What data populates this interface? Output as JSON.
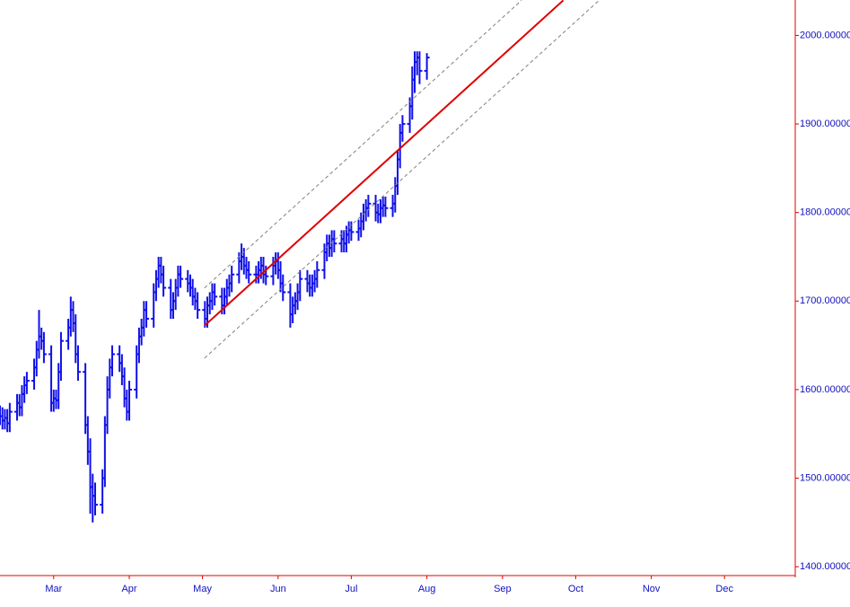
{
  "chart_data": {
    "type": "ohlc",
    "color": "#1010e8",
    "axis_color": "#e00000",
    "label_color": "#1010c0",
    "xlim": [
      0,
      326
    ],
    "ylim": [
      1390,
      2040
    ],
    "xticks": [
      {
        "value": 22,
        "label": "Mar"
      },
      {
        "value": 53,
        "label": "Apr"
      },
      {
        "value": 83,
        "label": "May"
      },
      {
        "value": 114,
        "label": "Jun"
      },
      {
        "value": 144,
        "label": "Jul"
      },
      {
        "value": 175,
        "label": "Aug"
      },
      {
        "value": 206,
        "label": "Sep"
      },
      {
        "value": 236,
        "label": "Oct"
      },
      {
        "value": 267,
        "label": "Nov"
      },
      {
        "value": 297,
        "label": "Dec"
      }
    ],
    "yticks": [
      {
        "value": 1400,
        "label": "1400.000000"
      },
      {
        "value": 1500,
        "label": "1500.000000"
      },
      {
        "value": 1600,
        "label": "1600.000000"
      },
      {
        "value": 1700,
        "label": "1700.000000"
      },
      {
        "value": 1800,
        "label": "1800.000000"
      },
      {
        "value": 1900,
        "label": "1900.000000"
      },
      {
        "value": 2000,
        "label": "2000.000000"
      }
    ],
    "x": [
      0,
      1,
      2,
      3,
      4,
      7,
      8,
      9,
      10,
      11,
      14,
      15,
      16,
      17,
      18,
      21,
      22,
      23,
      24,
      25,
      28,
      29,
      30,
      31,
      32,
      35,
      36,
      37,
      38,
      39,
      42,
      43,
      44,
      45,
      46,
      49,
      50,
      51,
      52,
      53,
      56,
      57,
      58,
      59,
      60,
      63,
      64,
      65,
      66,
      67,
      70,
      71,
      72,
      73,
      74,
      77,
      78,
      79,
      80,
      81,
      84,
      85,
      86,
      87,
      88,
      91,
      92,
      93,
      94,
      95,
      98,
      99,
      100,
      101,
      102,
      105,
      106,
      107,
      108,
      109,
      112,
      113,
      114,
      115,
      116,
      119,
      120,
      121,
      122,
      123,
      126,
      127,
      128,
      129,
      130,
      133,
      134,
      135,
      136,
      137,
      140,
      141,
      142,
      143,
      144,
      147,
      148,
      149,
      150,
      151,
      154,
      155,
      156,
      157,
      158,
      161,
      162,
      163,
      164,
      165,
      168,
      169,
      170,
      171,
      172,
      175
    ],
    "open": [
      1572,
      1570,
      1565,
      1568,
      1562,
      1575,
      1585,
      1580,
      1595,
      1605,
      1610,
      1625,
      1645,
      1660,
      1655,
      1640,
      1585,
      1590,
      1588,
      1620,
      1655,
      1670,
      1690,
      1675,
      1640,
      1620,
      1560,
      1530,
      1490,
      1480,
      1470,
      1500,
      1560,
      1600,
      1625,
      1640,
      1630,
      1615,
      1590,
      1575,
      1600,
      1640,
      1660,
      1670,
      1690,
      1680,
      1710,
      1725,
      1740,
      1730,
      1715,
      1690,
      1700,
      1715,
      1730,
      1725,
      1720,
      1715,
      1705,
      1700,
      1690,
      1680,
      1695,
      1700,
      1710,
      1705,
      1695,
      1705,
      1715,
      1720,
      1730,
      1745,
      1750,
      1740,
      1735,
      1730,
      1730,
      1735,
      1740,
      1730,
      1728,
      1740,
      1745,
      1735,
      1720,
      1710,
      1685,
      1695,
      1700,
      1710,
      1725,
      1720,
      1715,
      1720,
      1725,
      1735,
      1755,
      1765,
      1760,
      1770,
      1765,
      1770,
      1765,
      1775,
      1780,
      1778,
      1782,
      1790,
      1800,
      1805,
      1810,
      1800,
      1798,
      1805,
      1808,
      1805,
      1810,
      1830,
      1860,
      1890,
      1900,
      1920,
      1950,
      1970,
      1975,
      1960
    ],
    "high": [
      1582,
      1580,
      1578,
      1578,
      1585,
      1595,
      1595,
      1605,
      1615,
      1620,
      1635,
      1655,
      1690,
      1670,
      1665,
      1650,
      1600,
      1600,
      1630,
      1665,
      1680,
      1705,
      1700,
      1685,
      1650,
      1630,
      1570,
      1545,
      1505,
      1495,
      1510,
      1570,
      1615,
      1635,
      1650,
      1650,
      1640,
      1625,
      1600,
      1610,
      1650,
      1670,
      1680,
      1700,
      1700,
      1720,
      1735,
      1750,
      1750,
      1740,
      1725,
      1710,
      1725,
      1740,
      1740,
      1735,
      1730,
      1725,
      1715,
      1710,
      1700,
      1705,
      1710,
      1720,
      1720,
      1715,
      1715,
      1725,
      1730,
      1740,
      1755,
      1765,
      1760,
      1750,
      1745,
      1740,
      1745,
      1750,
      1750,
      1740,
      1750,
      1755,
      1755,
      1745,
      1730,
      1720,
      1705,
      1710,
      1720,
      1735,
      1735,
      1730,
      1730,
      1735,
      1745,
      1765,
      1775,
      1775,
      1780,
      1780,
      1780,
      1780,
      1785,
      1790,
      1790,
      1792,
      1800,
      1810,
      1815,
      1820,
      1820,
      1810,
      1815,
      1818,
      1818,
      1820,
      1840,
      1870,
      1900,
      1910,
      1930,
      1965,
      1982,
      1982,
      1982,
      1980
    ],
    "low": [
      1560,
      1555,
      1555,
      1552,
      1552,
      1565,
      1570,
      1570,
      1585,
      1595,
      1600,
      1615,
      1635,
      1645,
      1630,
      1575,
      1575,
      1578,
      1578,
      1610,
      1645,
      1660,
      1665,
      1630,
      1610,
      1550,
      1515,
      1460,
      1450,
      1458,
      1460,
      1490,
      1550,
      1590,
      1615,
      1620,
      1605,
      1580,
      1565,
      1565,
      1590,
      1630,
      1650,
      1660,
      1670,
      1670,
      1700,
      1715,
      1720,
      1705,
      1680,
      1680,
      1690,
      1705,
      1715,
      1710,
      1705,
      1695,
      1690,
      1680,
      1670,
      1670,
      1685,
      1690,
      1695,
      1685,
      1685,
      1695,
      1705,
      1710,
      1720,
      1735,
      1730,
      1725,
      1720,
      1720,
      1720,
      1725,
      1720,
      1718,
      1718,
      1730,
      1725,
      1710,
      1700,
      1670,
      1675,
      1685,
      1690,
      1700,
      1710,
      1705,
      1705,
      1710,
      1715,
      1725,
      1745,
      1750,
      1750,
      1755,
      1755,
      1755,
      1755,
      1765,
      1768,
      1768,
      1772,
      1780,
      1790,
      1795,
      1790,
      1788,
      1788,
      1795,
      1795,
      1795,
      1800,
      1820,
      1850,
      1880,
      1890,
      1905,
      1935,
      1955,
      1945,
      1950
    ],
    "close": [
      1570,
      1565,
      1568,
      1562,
      1575,
      1585,
      1580,
      1595,
      1605,
      1610,
      1625,
      1645,
      1660,
      1655,
      1640,
      1585,
      1590,
      1588,
      1620,
      1655,
      1670,
      1690,
      1675,
      1640,
      1620,
      1560,
      1530,
      1490,
      1480,
      1470,
      1500,
      1560,
      1600,
      1625,
      1640,
      1630,
      1615,
      1590,
      1575,
      1600,
      1640,
      1660,
      1670,
      1690,
      1680,
      1710,
      1725,
      1740,
      1730,
      1715,
      1690,
      1700,
      1715,
      1730,
      1725,
      1720,
      1715,
      1705,
      1700,
      1690,
      1680,
      1695,
      1700,
      1710,
      1705,
      1695,
      1705,
      1715,
      1720,
      1730,
      1745,
      1750,
      1740,
      1735,
      1730,
      1730,
      1735,
      1740,
      1730,
      1728,
      1740,
      1745,
      1735,
      1720,
      1710,
      1685,
      1695,
      1700,
      1710,
      1725,
      1720,
      1715,
      1720,
      1725,
      1735,
      1755,
      1765,
      1760,
      1770,
      1765,
      1770,
      1765,
      1775,
      1780,
      1778,
      1782,
      1790,
      1800,
      1805,
      1810,
      1800,
      1798,
      1805,
      1808,
      1805,
      1810,
      1830,
      1860,
      1890,
      1900,
      1920,
      1950,
      1970,
      1975,
      1960,
      1975
    ],
    "trend_lines": [
      {
        "x": [
          83.8,
          230.9
        ],
        "values": [
          1672.1,
          2039.6
        ],
        "color": "#e00000",
        "dashed": false
      },
      {
        "x": [
          83.8,
          213.8
        ],
        "values": [
          1714.7,
          2039.6
        ],
        "color": "#808080",
        "dashed": true
      },
      {
        "x": [
          83.8,
          245.6
        ],
        "values": [
          1635.5,
          2039.6
        ],
        "color": "#808080",
        "dashed": true
      }
    ]
  }
}
